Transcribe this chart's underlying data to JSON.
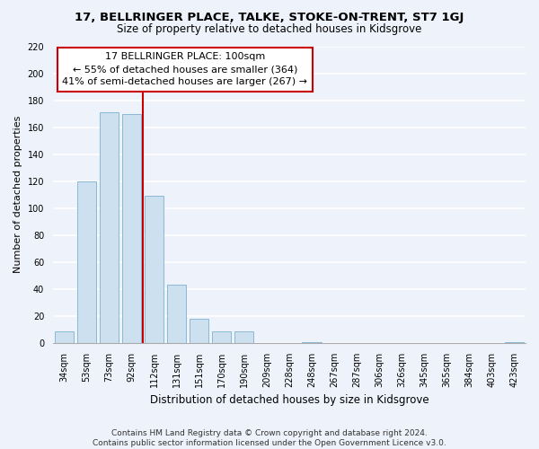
{
  "title": "17, BELLRINGER PLACE, TALKE, STOKE-ON-TRENT, ST7 1GJ",
  "subtitle": "Size of property relative to detached houses in Kidsgrove",
  "xlabel": "Distribution of detached houses by size in Kidsgrove",
  "ylabel": "Number of detached properties",
  "bar_labels": [
    "34sqm",
    "53sqm",
    "73sqm",
    "92sqm",
    "112sqm",
    "131sqm",
    "151sqm",
    "170sqm",
    "190sqm",
    "209sqm",
    "228sqm",
    "248sqm",
    "267sqm",
    "287sqm",
    "306sqm",
    "326sqm",
    "345sqm",
    "365sqm",
    "384sqm",
    "403sqm",
    "423sqm"
  ],
  "bar_values": [
    9,
    120,
    171,
    170,
    109,
    43,
    18,
    9,
    9,
    0,
    0,
    1,
    0,
    0,
    0,
    0,
    0,
    0,
    0,
    0,
    1
  ],
  "bar_color": "#cce0f0",
  "bar_edge_color": "#8ab8d4",
  "reference_line_color": "#cc0000",
  "reference_line_x": 4.0,
  "annotation_line1": "17 BELLRINGER PLACE: 100sqm",
  "annotation_line2": "← 55% of detached houses are smaller (364)",
  "annotation_line3": "41% of semi-detached houses are larger (267) →",
  "annotation_box_facecolor": "white",
  "annotation_box_edgecolor": "#cc0000",
  "ylim": [
    0,
    220
  ],
  "yticks": [
    0,
    20,
    40,
    60,
    80,
    100,
    120,
    140,
    160,
    180,
    200,
    220
  ],
  "footer_line1": "Contains HM Land Registry data © Crown copyright and database right 2024.",
  "footer_line2": "Contains public sector information licensed under the Open Government Licence v3.0.",
  "bg_color": "#eef2fb",
  "grid_color": "white",
  "title_fontsize": 9.5,
  "subtitle_fontsize": 8.5,
  "ylabel_fontsize": 8,
  "xlabel_fontsize": 8.5,
  "tick_fontsize": 7,
  "footer_fontsize": 6.5,
  "annotation_fontsize": 8
}
